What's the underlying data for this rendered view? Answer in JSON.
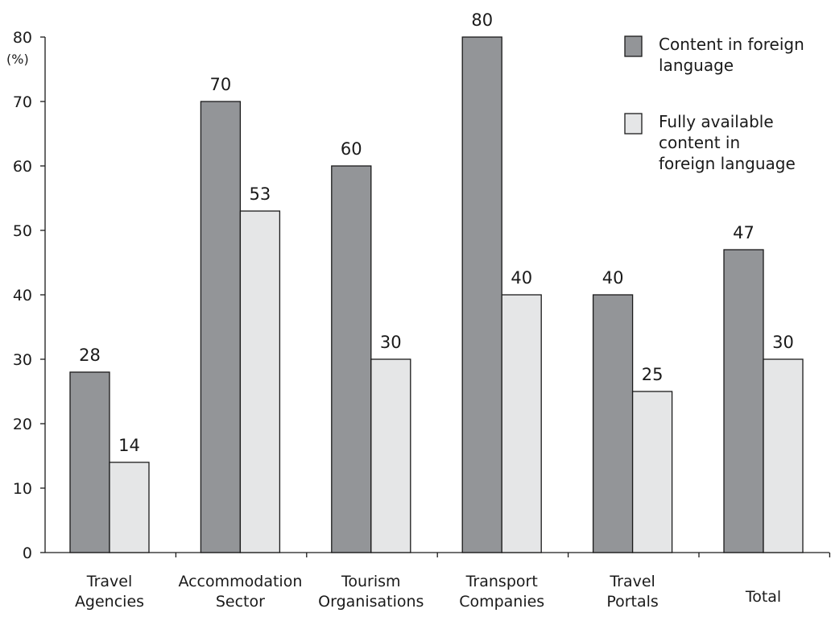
{
  "chart_data": {
    "type": "bar",
    "title": "",
    "xlabel": "",
    "ylabel": "(%)",
    "ylim": [
      0,
      80
    ],
    "yticks": [
      0,
      10,
      20,
      30,
      40,
      50,
      60,
      70,
      80
    ],
    "grid": false,
    "legend_position": "top-right",
    "categories": [
      [
        "Travel",
        "Agencies"
      ],
      [
        "Accommodation",
        "Sector"
      ],
      [
        "Tourism",
        "Organisations"
      ],
      [
        "Transport",
        "Companies"
      ],
      [
        "Travel",
        "Portals"
      ],
      [
        "Total"
      ]
    ],
    "series": [
      {
        "name_lines": [
          "Content in foreign",
          "language"
        ],
        "color": "#939598",
        "values": [
          28,
          70,
          60,
          80,
          40,
          47
        ]
      },
      {
        "name_lines": [
          "Fully available",
          "content in",
          "foreign language"
        ],
        "color": "#e5e6e7",
        "values": [
          14,
          53,
          30,
          40,
          25,
          30
        ]
      }
    ]
  }
}
